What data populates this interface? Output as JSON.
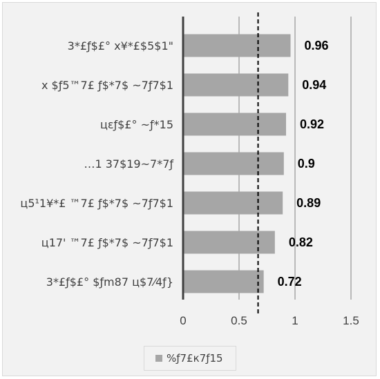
{
  "chart_data": {
    "type": "bar",
    "orientation": "horizontal",
    "categories": [
      "3*£ƒ$£° x¥*£$5$1\"",
      "x $ƒ5™7£ ƒ$*7$ ~7ƒ7$1",
      "цɛƒ$£° ~ƒ*15",
      "…1 37$19~7*7ƒ",
      "ц5¹1¥*£ ™7£ ƒ$*7$ ~7ƒ7$1",
      "ц17' ™7£ ƒ$*7$ ~7ƒ7$1",
      "3*£ƒ$£° $ƒm87 ц$7⁄4ƒ}"
    ],
    "series": [
      {
        "name": "%ƒ7£к7ƒ15",
        "values": [
          0.96,
          0.94,
          0.92,
          0.9,
          0.89,
          0.82,
          0.72
        ],
        "data_labels": [
          "0.96",
          "0.94",
          "0.92",
          "0.9",
          "0.89",
          "0.82",
          "0.72"
        ]
      }
    ],
    "x_ticks": [
      "0",
      "0.5",
      "1",
      "1.5"
    ],
    "xlim": [
      0,
      1.5
    ],
    "reference_line": 0.67,
    "grid": true,
    "legend_position": "bottom",
    "bar_color": "#a6a6a6"
  }
}
